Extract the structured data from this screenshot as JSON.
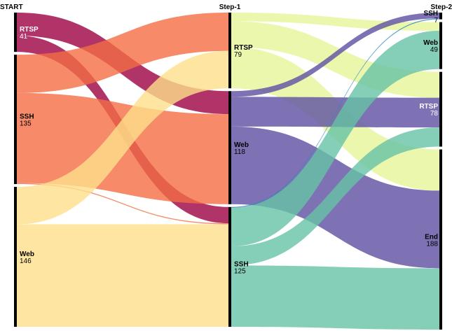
{
  "chart_data": {
    "type": "sankey",
    "stages": [
      "START",
      "Step-1",
      "Step-2"
    ],
    "nodes": [
      {
        "id": "s0_rtsp",
        "stage": 0,
        "label": "RTSP",
        "value": 41
      },
      {
        "id": "s0_ssh",
        "stage": 0,
        "label": "SSH",
        "value": 135
      },
      {
        "id": "s0_web",
        "stage": 0,
        "label": "Web",
        "value": 146
      },
      {
        "id": "s1_rtsp",
        "stage": 1,
        "label": "RTSP",
        "value": 79
      },
      {
        "id": "s1_web",
        "stage": 1,
        "label": "Web",
        "value": 118
      },
      {
        "id": "s1_ssh",
        "stage": 1,
        "label": "SSH",
        "value": 125
      },
      {
        "id": "s2_ssh",
        "stage": 2,
        "label": "SSH",
        "value": 7
      },
      {
        "id": "s2_web",
        "stage": 2,
        "label": "Web",
        "value": 49
      },
      {
        "id": "s2_rtsp",
        "stage": 2,
        "label": "RTSP",
        "value": 78
      },
      {
        "id": "s2_end",
        "stage": 2,
        "label": "End",
        "value": 188
      }
    ],
    "links": [
      {
        "source": "s0_rtsp",
        "target": "s1_web",
        "value": 24,
        "color": "#9e0142"
      },
      {
        "source": "s0_rtsp",
        "target": "s1_ssh",
        "value": 17,
        "color": "#9e0142"
      },
      {
        "source": "s0_ssh",
        "target": "s1_rtsp",
        "value": 40,
        "color": "#f46d43"
      },
      {
        "source": "s0_ssh",
        "target": "s1_web",
        "value": 94,
        "color": "#f46d43"
      },
      {
        "source": "s0_ssh",
        "target": "s1_ssh",
        "value": 1,
        "color": "#f46d43"
      },
      {
        "source": "s0_web",
        "target": "s1_rtsp",
        "value": 39,
        "color": "#fee08b"
      },
      {
        "source": "s0_web",
        "target": "s1_ssh",
        "value": 107,
        "color": "#fee08b"
      },
      {
        "source": "s1_rtsp",
        "target": "s2_web",
        "value": 9,
        "color": "#e6f598"
      },
      {
        "source": "s1_rtsp",
        "target": "s2_rtsp",
        "value": 27,
        "color": "#e6f598"
      },
      {
        "source": "s1_rtsp",
        "target": "s2_end",
        "value": 43,
        "color": "#e6f598"
      },
      {
        "source": "s1_web",
        "target": "s2_ssh",
        "value": 6,
        "color": "#5e4fa2"
      },
      {
        "source": "s1_web",
        "target": "s2_rtsp",
        "value": 31,
        "color": "#5e4fa2"
      },
      {
        "source": "s1_web",
        "target": "s2_end",
        "value": 81,
        "color": "#5e4fa2"
      },
      {
        "source": "s1_ssh",
        "target": "s2_ssh",
        "value": 1,
        "color": "#3288bd"
      },
      {
        "source": "s1_ssh",
        "target": "s2_web",
        "value": 40,
        "color": "#66c2a5"
      },
      {
        "source": "s1_ssh",
        "target": "s2_rtsp",
        "value": 20,
        "color": "#66c2a5"
      },
      {
        "source": "s1_ssh",
        "target": "s2_end",
        "value": 64,
        "color": "#66c2a5"
      }
    ]
  }
}
